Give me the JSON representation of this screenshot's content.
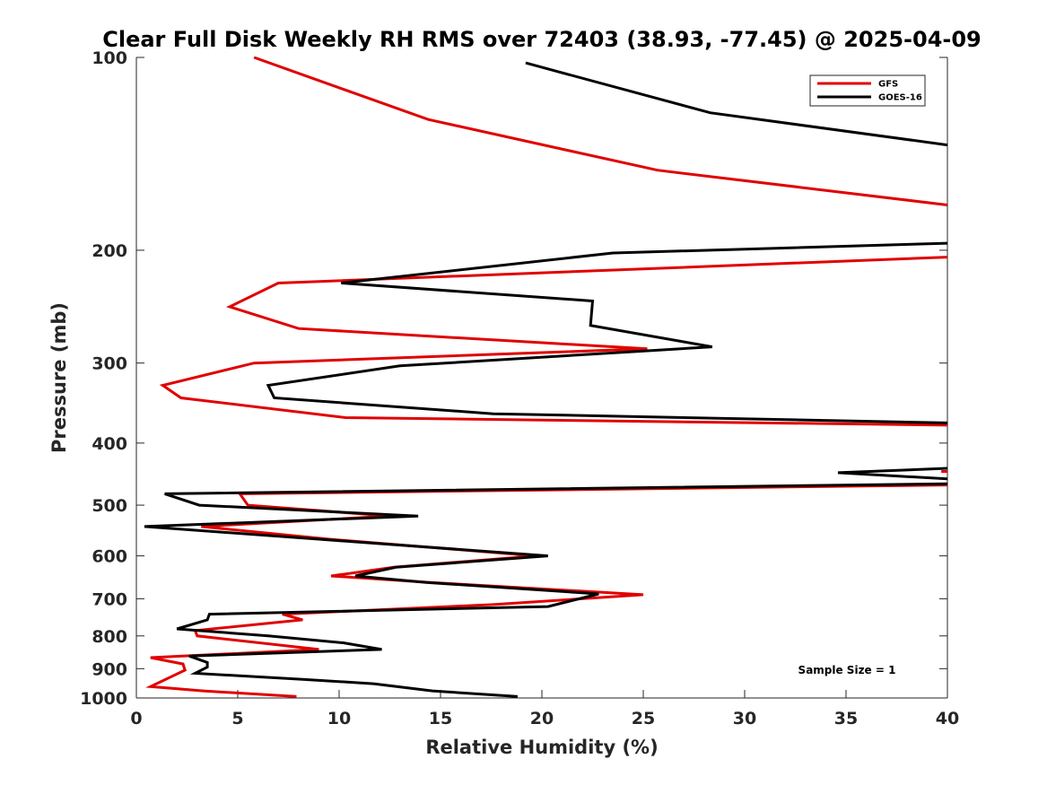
{
  "chart_data": {
    "type": "line",
    "title": "Clear Full Disk Weekly RH RMS over 72403 (38.93, -77.45) @ 2025-04-09",
    "xlabel": "Relative Humidity (%)",
    "ylabel": "Pressure (mb)",
    "xlim": [
      0,
      40
    ],
    "ylim": [
      100,
      1000
    ],
    "y_scale": "log",
    "y_reversed": true,
    "grid": false,
    "legend_position": "top-right",
    "x_ticks": [
      0,
      5,
      10,
      15,
      20,
      25,
      30,
      35,
      40
    ],
    "y_ticks": [
      100,
      200,
      300,
      400,
      500,
      600,
      700,
      800,
      900,
      1000
    ],
    "annotation": "Sample Size = 1",
    "series": [
      {
        "name": "GFS",
        "color": "#e00000",
        "points": [
          [
            5.8,
            100
          ],
          [
            14.4,
            125
          ],
          [
            25.7,
            150
          ],
          [
            40,
            170
          ],
          [
            null,
            null
          ],
          [
            40,
            205
          ],
          [
            7.0,
            225
          ],
          [
            4.6,
            245
          ],
          [
            8.0,
            265
          ],
          [
            25.2,
            285
          ],
          [
            5.8,
            300
          ],
          [
            1.3,
            325
          ],
          [
            2.2,
            340
          ],
          [
            10.3,
            365
          ],
          [
            40,
            375
          ],
          [
            null,
            null
          ],
          [
            39.7,
            443
          ],
          [
            40,
            443
          ],
          [
            null,
            null
          ],
          [
            40,
            465
          ],
          [
            5.1,
            480
          ],
          [
            5.5,
            500
          ],
          [
            12.5,
            520
          ],
          [
            3.2,
            540
          ],
          [
            9.5,
            565
          ],
          [
            19.7,
            600
          ],
          [
            12.7,
            625
          ],
          [
            9.6,
            645
          ],
          [
            14.5,
            660
          ],
          [
            25.0,
            690
          ],
          [
            17.5,
            715
          ],
          [
            7.2,
            740
          ],
          [
            8.2,
            755
          ],
          [
            2.9,
            785
          ],
          [
            3.0,
            800
          ],
          [
            9.0,
            840
          ],
          [
            0.7,
            865
          ],
          [
            2.3,
            885
          ],
          [
            2.4,
            905
          ],
          [
            0.7,
            960
          ],
          [
            3.3,
            975
          ],
          [
            7.9,
            995
          ]
        ]
      },
      {
        "name": "GOES-16",
        "color": "#000000",
        "points": [
          [
            19.2,
            102
          ],
          [
            28.3,
            122
          ],
          [
            40,
            137
          ],
          [
            null,
            null
          ],
          [
            40,
            195
          ],
          [
            23.5,
            202
          ],
          [
            10.1,
            225
          ],
          [
            22.5,
            240
          ],
          [
            22.4,
            262
          ],
          [
            28.4,
            283
          ],
          [
            13.0,
            303
          ],
          [
            6.5,
            325
          ],
          [
            6.8,
            340
          ],
          [
            17.6,
            360
          ],
          [
            40,
            372
          ],
          [
            null,
            null
          ],
          [
            40,
            438
          ],
          [
            34.6,
            445
          ],
          [
            40,
            455
          ],
          [
            null,
            null
          ],
          [
            40,
            463
          ],
          [
            1.4,
            480
          ],
          [
            3.1,
            500
          ],
          [
            13.9,
            520
          ],
          [
            0.4,
            540
          ],
          [
            9.0,
            565
          ],
          [
            20.3,
            600
          ],
          [
            12.8,
            625
          ],
          [
            10.8,
            645
          ],
          [
            14.3,
            660
          ],
          [
            22.8,
            688
          ],
          [
            20.3,
            720
          ],
          [
            3.6,
            740
          ],
          [
            3.5,
            755
          ],
          [
            2.0,
            780
          ],
          [
            6.5,
            800
          ],
          [
            10.2,
            820
          ],
          [
            12.1,
            840
          ],
          [
            2.6,
            860
          ],
          [
            3.5,
            880
          ],
          [
            3.5,
            895
          ],
          [
            2.9,
            915
          ],
          [
            8.2,
            935
          ],
          [
            11.7,
            950
          ],
          [
            14.6,
            975
          ],
          [
            18.8,
            995
          ]
        ]
      }
    ]
  }
}
